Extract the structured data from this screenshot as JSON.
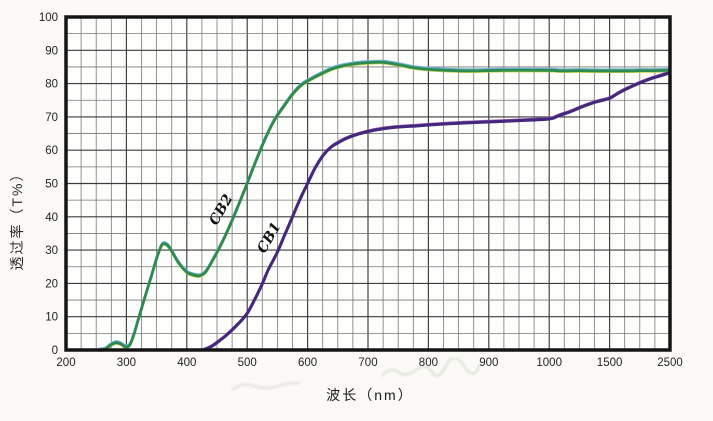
{
  "chart_data": {
    "type": "line",
    "title": "",
    "xlabel": "波长（nm）",
    "ylabel": "透过率（T%）",
    "x_scale_note": "piecewise linear: 100nm per division from 200 to 1000, then 1000-1500 and 1500-2500 each one division",
    "x_tick_values": [
      200,
      300,
      400,
      500,
      600,
      700,
      800,
      900,
      1000,
      1500,
      2500
    ],
    "x_tick_labels": [
      "200",
      "300",
      "400",
      "500",
      "600",
      "700",
      "800",
      "900",
      "1000",
      "1500",
      "2500"
    ],
    "y_tick_labels": [
      "100",
      "90",
      "80",
      "70",
      "60",
      "50",
      "40",
      "30",
      "20",
      "10",
      "0"
    ],
    "ylim": [
      0,
      100
    ],
    "y_tick_step": 10,
    "grid": {
      "on": true,
      "x_divisions": 40,
      "x_major_every": 4,
      "y_divisions": 20,
      "y_major_every": 2
    },
    "series": [
      {
        "name": "CB2",
        "color": "#2e8b4d",
        "points": [
          [
            256,
            0
          ],
          [
            265,
            0.3
          ],
          [
            274,
            1.5
          ],
          [
            283,
            2.2
          ],
          [
            291,
            1.8
          ],
          [
            299,
            0.9
          ],
          [
            306,
            1.6
          ],
          [
            313,
            5
          ],
          [
            321,
            10
          ],
          [
            331,
            16
          ],
          [
            341,
            22
          ],
          [
            351,
            28
          ],
          [
            359,
            31.6
          ],
          [
            366,
            31.7
          ],
          [
            373,
            30.3
          ],
          [
            386,
            26.3
          ],
          [
            400,
            23.4
          ],
          [
            412,
            22.5
          ],
          [
            421,
            22.3
          ],
          [
            431,
            23.4
          ],
          [
            443,
            27
          ],
          [
            455,
            31
          ],
          [
            468,
            36
          ],
          [
            480,
            41
          ],
          [
            490,
            45.5
          ],
          [
            500,
            50
          ],
          [
            515,
            57
          ],
          [
            530,
            63.5
          ],
          [
            545,
            69
          ],
          [
            560,
            73
          ],
          [
            575,
            76.8
          ],
          [
            590,
            79.6
          ],
          [
            605,
            81.3
          ],
          [
            620,
            82.7
          ],
          [
            640,
            84.4
          ],
          [
            660,
            85.4
          ],
          [
            680,
            86
          ],
          [
            700,
            86.3
          ],
          [
            725,
            86.4
          ],
          [
            750,
            85.7
          ],
          [
            775,
            84.8
          ],
          [
            800,
            84.3
          ],
          [
            830,
            84
          ],
          [
            870,
            83.8
          ],
          [
            920,
            84
          ],
          [
            1000,
            84
          ],
          [
            1100,
            83.8
          ],
          [
            1250,
            83.9
          ],
          [
            1400,
            83.8
          ],
          [
            1600,
            83.8
          ],
          [
            1800,
            83.8
          ],
          [
            2000,
            83.9
          ],
          [
            2250,
            83.9
          ],
          [
            2500,
            84
          ]
        ]
      },
      {
        "name": "CB1",
        "color": "#45277d",
        "points": [
          [
            428,
            0
          ],
          [
            440,
            1
          ],
          [
            452,
            2.5
          ],
          [
            464,
            4.2
          ],
          [
            476,
            6.2
          ],
          [
            488,
            8.4
          ],
          [
            500,
            11
          ],
          [
            512,
            15
          ],
          [
            524,
            19.5
          ],
          [
            536,
            24.5
          ],
          [
            549,
            29
          ],
          [
            562,
            34.5
          ],
          [
            575,
            40
          ],
          [
            588,
            45.5
          ],
          [
            600,
            50
          ],
          [
            612,
            54.5
          ],
          [
            625,
            58.3
          ],
          [
            638,
            60.8
          ],
          [
            650,
            62.2
          ],
          [
            665,
            63.6
          ],
          [
            685,
            64.9
          ],
          [
            710,
            66
          ],
          [
            740,
            66.8
          ],
          [
            780,
            67.3
          ],
          [
            820,
            67.8
          ],
          [
            860,
            68.2
          ],
          [
            900,
            68.5
          ],
          [
            950,
            68.9
          ],
          [
            1000,
            69.4
          ],
          [
            1080,
            70.4
          ],
          [
            1170,
            71.5
          ],
          [
            1270,
            73
          ],
          [
            1380,
            74.4
          ],
          [
            1500,
            75.6
          ],
          [
            1650,
            77.2
          ],
          [
            1800,
            78.6
          ],
          [
            2000,
            80.2
          ],
          [
            2200,
            81.6
          ],
          [
            2350,
            82.4
          ],
          [
            2500,
            83.3
          ]
        ]
      }
    ]
  },
  "colors": {
    "grid_minor": "#787878",
    "grid_major": "#3c3c3c",
    "border": "#151515",
    "cb2_edge_top": "#6fb2d8",
    "cb2_edge_bottom": "#bfd24b",
    "cb1_edge_top": "#9a5fb0",
    "tick_text": "#222222"
  }
}
